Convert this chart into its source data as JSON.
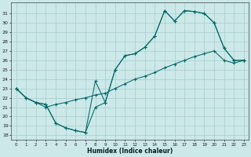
{
  "background_color": "#cce8e8",
  "grid_color": "#a8cece",
  "line_color": "#006868",
  "xlabel": "Humidex (Indice chaleur)",
  "xlim": [
    -0.5,
    23.5
  ],
  "ylim": [
    17.5,
    32.2
  ],
  "xticks": [
    0,
    1,
    2,
    3,
    4,
    5,
    6,
    7,
    8,
    9,
    10,
    11,
    12,
    13,
    14,
    15,
    16,
    17,
    18,
    19,
    20,
    21,
    22,
    23
  ],
  "yticks": [
    18,
    19,
    20,
    21,
    22,
    23,
    24,
    25,
    26,
    27,
    28,
    29,
    30,
    31
  ],
  "line1_x": [
    0,
    1,
    2,
    3,
    4,
    5,
    6,
    7,
    8,
    9,
    10,
    11,
    12,
    13,
    14,
    15,
    16,
    17,
    18,
    19,
    20,
    21,
    22,
    23
  ],
  "line1_y": [
    23.0,
    22.0,
    21.5,
    21.3,
    19.3,
    18.8,
    18.5,
    18.3,
    21.0,
    21.5,
    25.0,
    26.5,
    26.7,
    27.4,
    28.6,
    31.3,
    30.2,
    31.3,
    31.2,
    31.0,
    30.0,
    27.3,
    26.0,
    26.0
  ],
  "line2_x": [
    0,
    1,
    2,
    3,
    4,
    5,
    6,
    7,
    8,
    9,
    10,
    11,
    12,
    13,
    14,
    15,
    16,
    17,
    18,
    19,
    20,
    21,
    22,
    23
  ],
  "line2_y": [
    23.0,
    22.0,
    21.5,
    21.3,
    19.3,
    18.8,
    18.5,
    18.3,
    23.8,
    21.5,
    25.0,
    26.5,
    26.7,
    27.4,
    28.6,
    31.3,
    30.2,
    31.3,
    31.2,
    31.0,
    30.0,
    27.3,
    26.0,
    26.0
  ],
  "line3_x": [
    0,
    1,
    2,
    3,
    4,
    5,
    6,
    7,
    8,
    9,
    10,
    11,
    12,
    13,
    14,
    15,
    16,
    17,
    18,
    19,
    20,
    21,
    22,
    23
  ],
  "line3_y": [
    23.0,
    22.0,
    21.5,
    21.0,
    21.3,
    21.5,
    21.8,
    22.0,
    22.3,
    22.5,
    23.0,
    23.5,
    24.0,
    24.3,
    24.7,
    25.2,
    25.6,
    26.0,
    26.4,
    26.7,
    27.0,
    26.0,
    25.7,
    26.0
  ]
}
